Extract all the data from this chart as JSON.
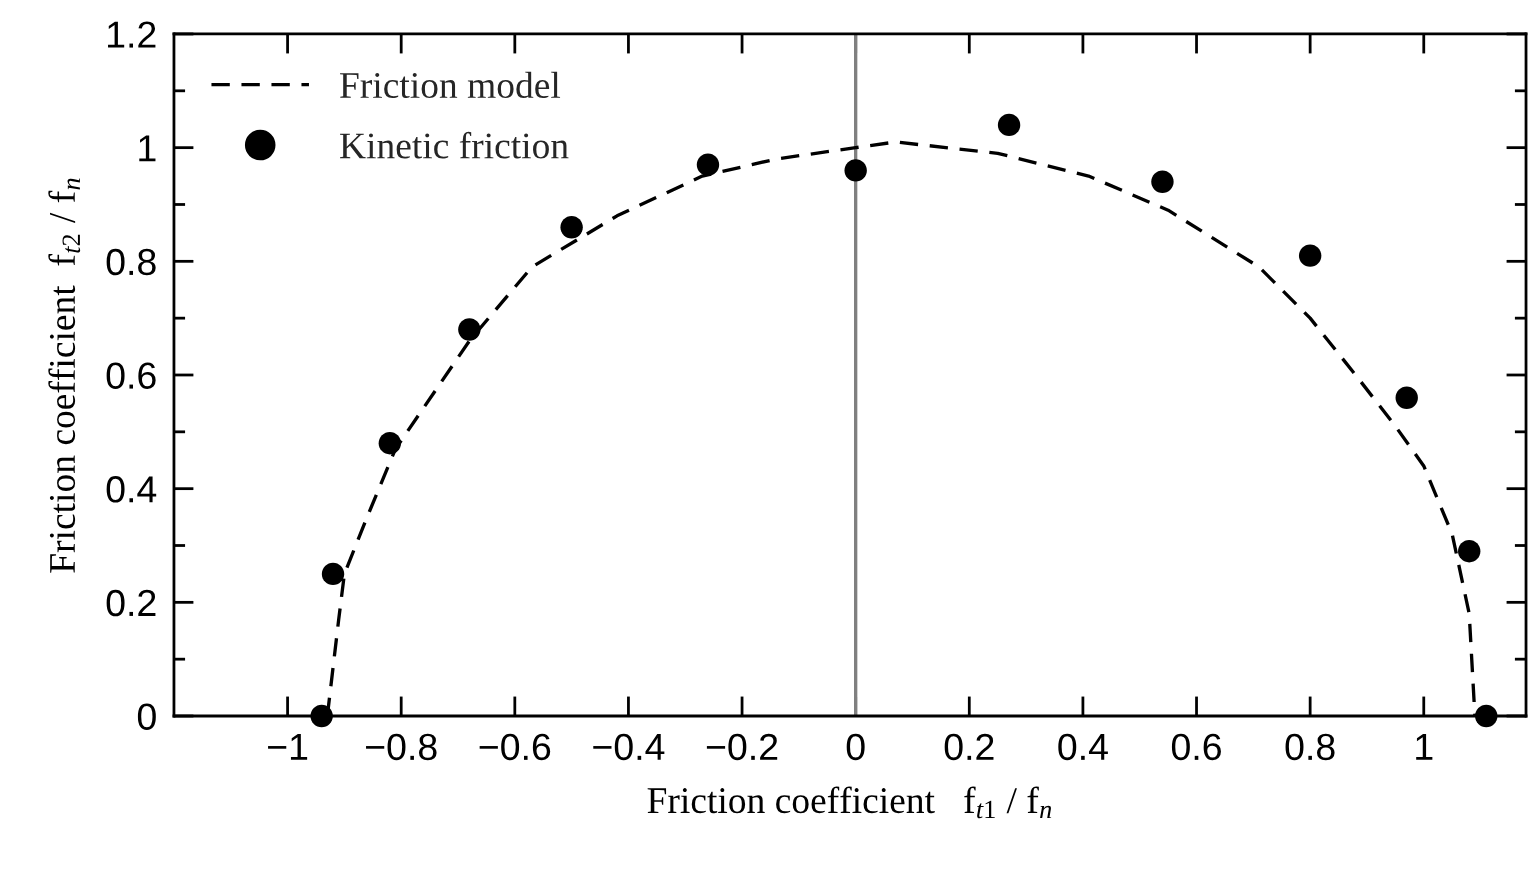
{
  "chart_data": {
    "type": "scatter",
    "xlabel": "Friction coefficient   f$_{t1}$ / f$_{n}$",
    "ylabel": "Friction coefficient  f$_{t2}$ / f$_{n}$",
    "xlim": [
      -1.2,
      1.18
    ],
    "ylim": [
      0,
      1.2
    ],
    "xticks": [
      {
        "value": -1,
        "label": "−1"
      },
      {
        "value": -0.8,
        "label": "−0.8"
      },
      {
        "value": -0.6,
        "label": "−0.6"
      },
      {
        "value": -0.4,
        "label": "−0.4"
      },
      {
        "value": -0.2,
        "label": "−0.2"
      },
      0,
      0.2,
      0.4,
      0.6,
      0.8,
      1
    ],
    "yticks": [
      0,
      {
        "value": 0.1,
        "label": null
      },
      0.2,
      {
        "value": 0.3,
        "label": null
      },
      0.4,
      {
        "value": 0.5,
        "label": null
      },
      0.6,
      {
        "value": 0.7,
        "label": null
      },
      0.8,
      {
        "value": 0.9,
        "label": null
      },
      1,
      {
        "value": 1.1,
        "label": null
      },
      1.2
    ],
    "series": [
      {
        "name": "Friction model",
        "type": "line",
        "color": "#000000",
        "line_style": "dashed",
        "marker": "none",
        "x": [
          -0.93,
          -0.91,
          -0.9,
          -0.86,
          -0.81,
          -0.68,
          -0.57,
          -0.42,
          -0.27,
          -0.14,
          0,
          0.07,
          0.25,
          0.41,
          0.55,
          0.71,
          0.8,
          0.88,
          0.95,
          1.0,
          1.05,
          1.08,
          1.09
        ],
        "values": [
          0,
          0.17,
          0.25,
          0.35,
          0.47,
          0.66,
          0.79,
          0.88,
          0.95,
          0.98,
          1.0,
          1.01,
          0.99,
          0.95,
          0.89,
          0.79,
          0.7,
          0.6,
          0.51,
          0.44,
          0.32,
          0.18,
          0
        ]
      },
      {
        "name": "Kinetic friction",
        "color": "#000000",
        "marker": "circle",
        "x": [
          -0.94,
          -0.92,
          -0.82,
          -0.68,
          -0.5,
          -0.26,
          0,
          0.27,
          0.54,
          0.8,
          0.97,
          1.08,
          1.11
        ],
        "values": [
          0,
          0.25,
          0.48,
          0.68,
          0.86,
          0.97,
          0.96,
          1.04,
          0.94,
          0.81,
          0.56,
          0.29,
          0
        ]
      }
    ],
    "ref_lines": [
      {
        "axis": "x",
        "value": 0,
        "color": "#808080"
      }
    ],
    "legend": "top left"
  }
}
